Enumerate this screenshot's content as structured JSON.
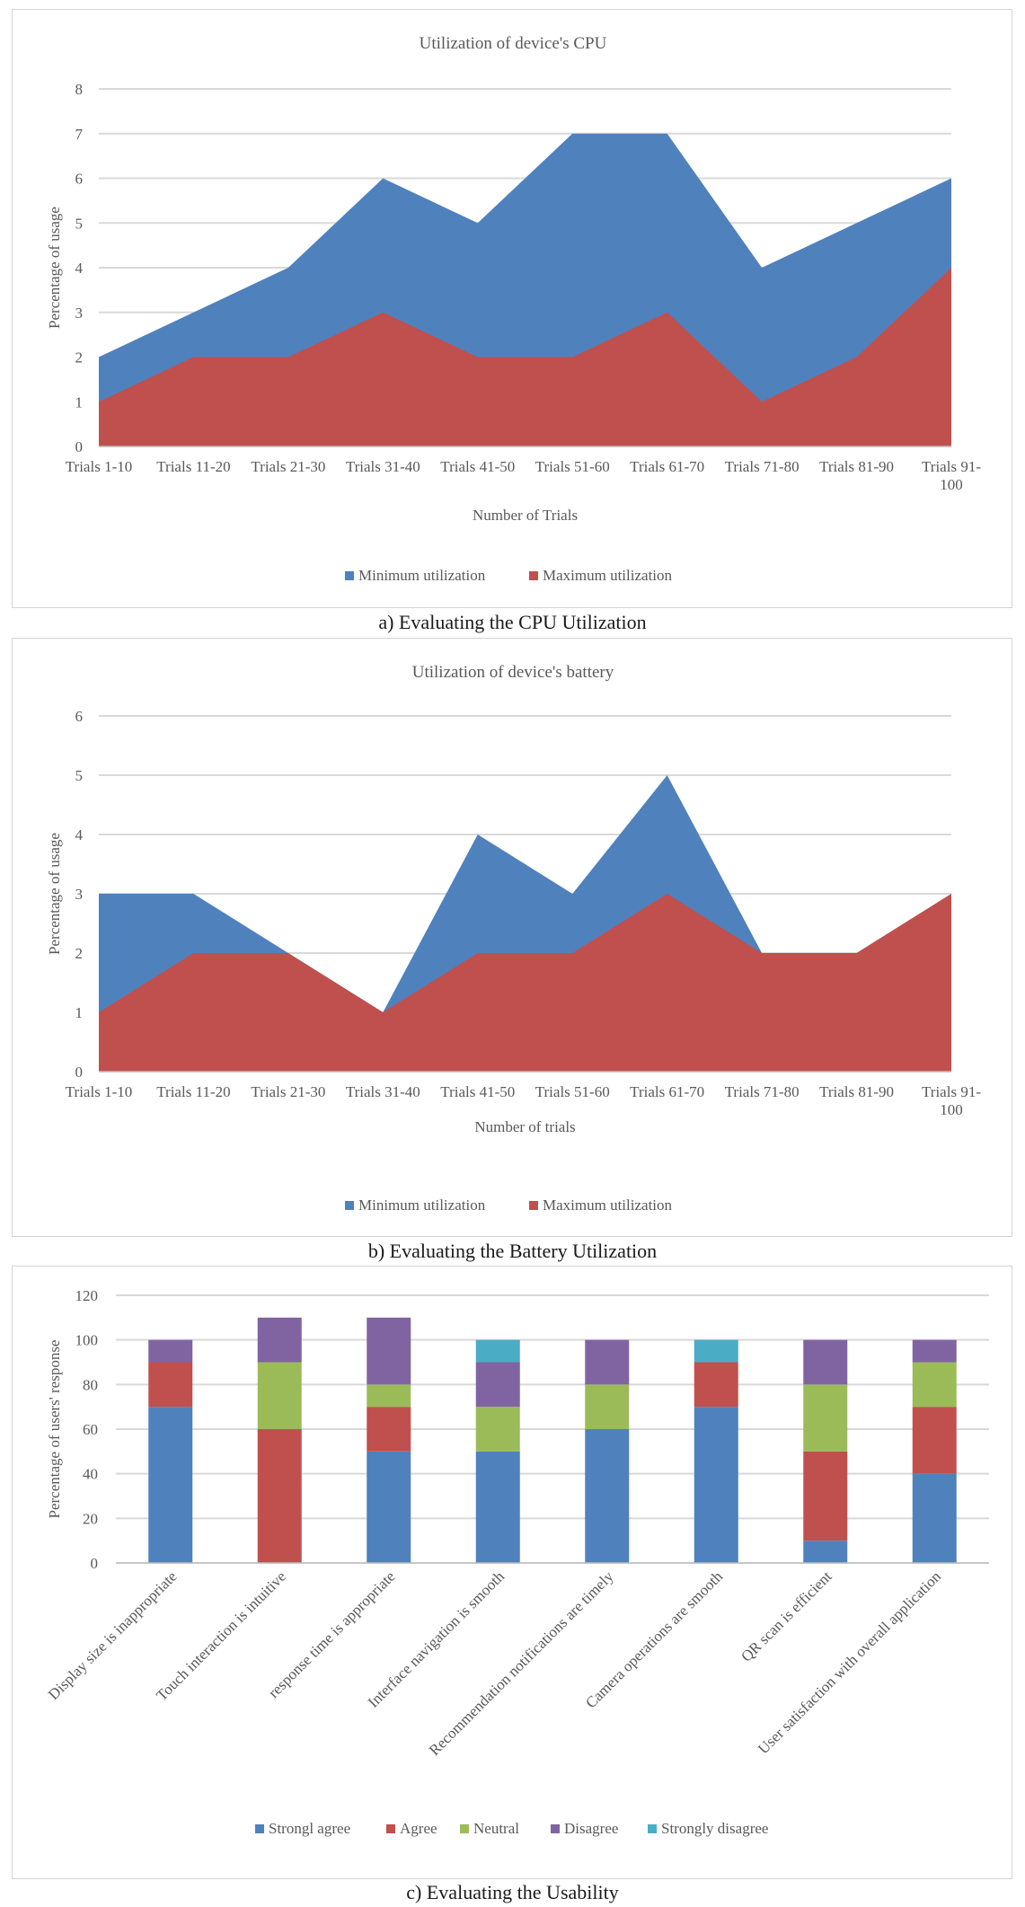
{
  "colors": {
    "blue": "#4f81bd",
    "red": "#c0504d",
    "green": "#9bbb59",
    "purple": "#8064a2",
    "cyan": "#4bacc6",
    "grid": "#d9d9d9",
    "text": "#595959"
  },
  "captions": {
    "a": "a) Evaluating the CPU Utilization",
    "b": "b) Evaluating the Battery Utilization",
    "c": "c) Evaluating the Usability"
  },
  "chart_data": [
    {
      "type": "area",
      "title": "Utilization of device's CPU",
      "xlabel": "Number of Trials",
      "ylabel": "Percentage of usage",
      "ylim": [
        0,
        8
      ],
      "yticks": [
        "0",
        "1",
        "2",
        "3",
        "4",
        "5",
        "6",
        "7",
        "8"
      ],
      "categories": [
        "Trials 1-10",
        "Trials 11-20",
        "Trials 21-30",
        "Trials 31-40",
        "Trials 41-50",
        "Trials 51-60",
        "Trials 61-70",
        "Trials 71-80",
        "Trials 81-90",
        "Trials 91-100"
      ],
      "legend_position": "bottom",
      "grid": true,
      "series": [
        {
          "name": "Minimum utilization",
          "color": "#4f81bd",
          "values": [
            2,
            3,
            4,
            6,
            5,
            7,
            7,
            4,
            5,
            6
          ]
        },
        {
          "name": "Maximum utilization",
          "color": "#c0504d",
          "values": [
            1,
            2,
            2,
            3,
            2,
            2,
            3,
            1,
            2,
            4
          ]
        }
      ]
    },
    {
      "type": "area",
      "title": "Utilization  of device's battery",
      "xlabel": "Number of trials",
      "ylabel": "Percentage of usage",
      "ylim": [
        0,
        6
      ],
      "yticks": [
        "0",
        "1",
        "2",
        "3",
        "4",
        "5",
        "6"
      ],
      "categories": [
        "Trials 1-10",
        "Trials 11-20",
        "Trials 21-30",
        "Trials 31-40",
        "Trials 41-50",
        "Trials 51-60",
        "Trials 61-70",
        "Trials 71-80",
        "Trials 81-90",
        "Trials 91-100"
      ],
      "legend_position": "bottom",
      "grid": true,
      "series": [
        {
          "name": "Minimum utilization",
          "color": "#4f81bd",
          "values": [
            3,
            3,
            2,
            1,
            4,
            3,
            5,
            2,
            2,
            3
          ]
        },
        {
          "name": "Maximum utilization",
          "color": "#c0504d",
          "values": [
            1,
            2,
            2,
            1,
            2,
            2,
            3,
            2,
            2,
            3
          ]
        }
      ]
    },
    {
      "type": "bar",
      "stacked": true,
      "title": "",
      "xlabel": "",
      "ylabel": "Percentage of users' response",
      "ylim": [
        0,
        120
      ],
      "yticks": [
        "0",
        "20",
        "40",
        "60",
        "80",
        "100",
        "120"
      ],
      "categories": [
        "Display size is inappropriate",
        "Touch interaction is intuitive",
        "response time is appropriate",
        "Interface navigation is smooth",
        "Recommendation notifications are timely",
        "Camera operations are smooth",
        "QR scan is efficient",
        "User satisfaction with overall application"
      ],
      "legend_position": "bottom",
      "grid": true,
      "series": [
        {
          "name": "Strongl agree",
          "color": "#4f81bd",
          "values": [
            70,
            0,
            50,
            50,
            60,
            70,
            10,
            40
          ]
        },
        {
          "name": "Agree",
          "color": "#c0504d",
          "values": [
            20,
            60,
            20,
            0,
            0,
            20,
            40,
            30
          ]
        },
        {
          "name": "Neutral",
          "color": "#9bbb59",
          "values": [
            0,
            30,
            10,
            20,
            20,
            0,
            30,
            20
          ]
        },
        {
          "name": "Disagree",
          "color": "#8064a2",
          "values": [
            10,
            20,
            30,
            20,
            20,
            0,
            20,
            10
          ]
        },
        {
          "name": "Strongly disagree",
          "color": "#4bacc6",
          "values": [
            0,
            0,
            0,
            10,
            0,
            10,
            0,
            0
          ]
        }
      ]
    }
  ]
}
